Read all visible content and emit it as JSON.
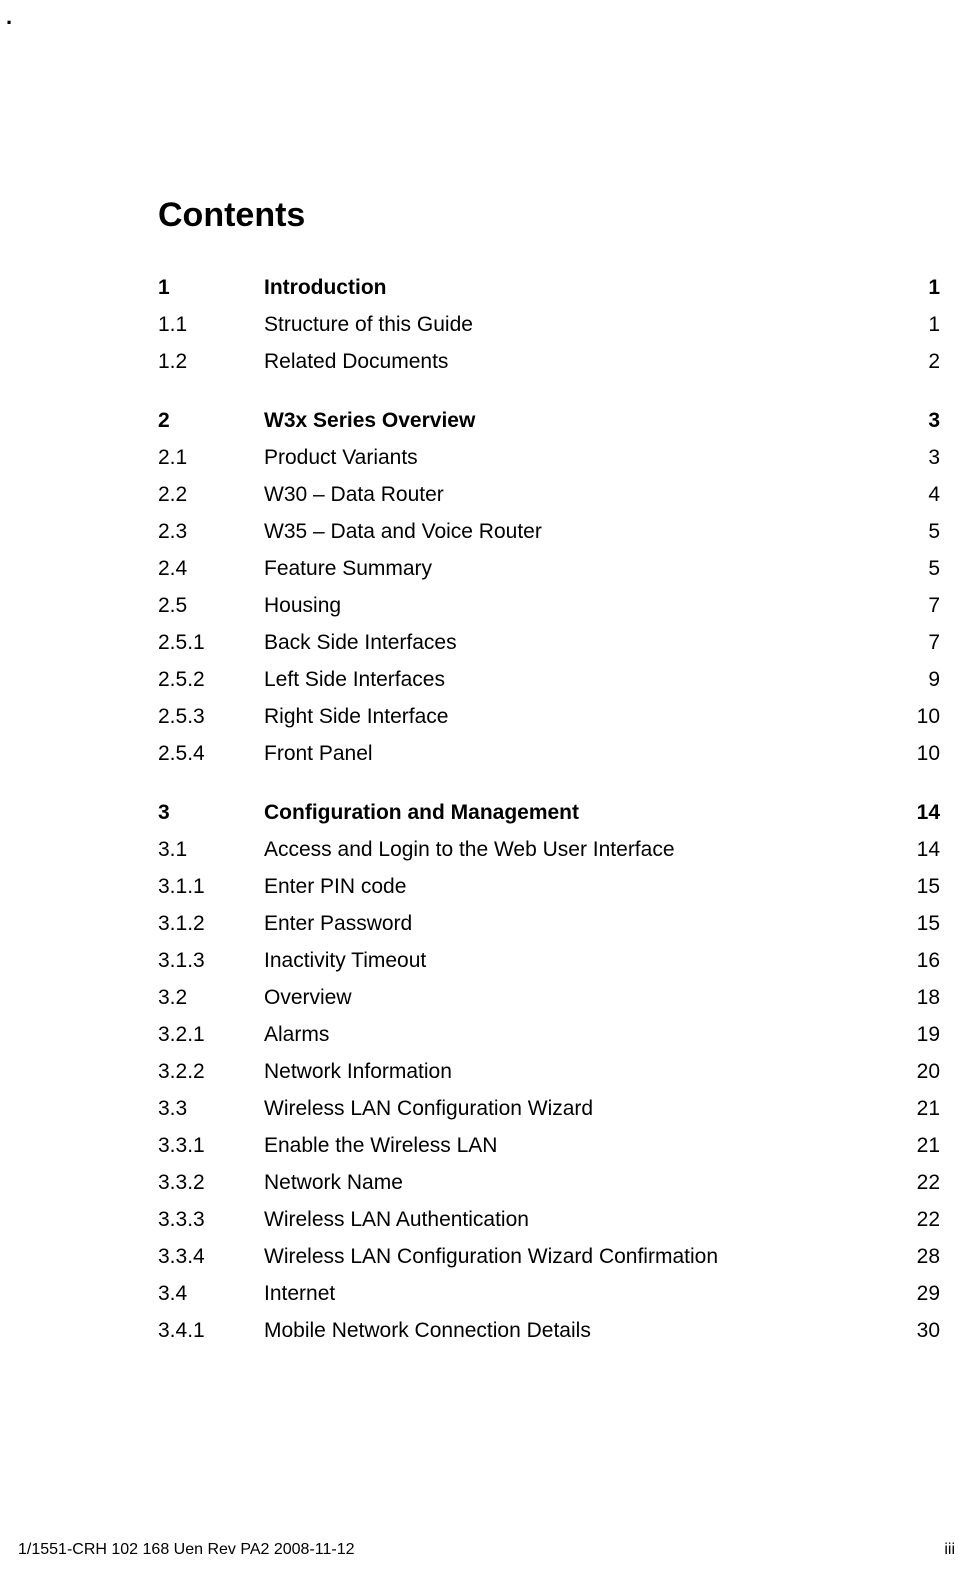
{
  "corner_mark": ".",
  "heading": "Contents",
  "toc": [
    {
      "num": "1",
      "title": "Introduction",
      "page": "1",
      "bold": true,
      "gap_before": false
    },
    {
      "num": "1.1",
      "title": "Structure of this Guide",
      "page": "1",
      "bold": false,
      "gap_before": false
    },
    {
      "num": "1.2",
      "title": "Related Documents",
      "page": "2",
      "bold": false,
      "gap_before": false
    },
    {
      "num": "2",
      "title": "W3x Series Overview",
      "page": "3",
      "bold": true,
      "gap_before": true
    },
    {
      "num": "2.1",
      "title": "Product Variants",
      "page": "3",
      "bold": false,
      "gap_before": false
    },
    {
      "num": "2.2",
      "title": "W30 – Data Router",
      "page": "4",
      "bold": false,
      "gap_before": false
    },
    {
      "num": "2.3",
      "title": "W35 – Data and Voice Router",
      "page": "5",
      "bold": false,
      "gap_before": false
    },
    {
      "num": "2.4",
      "title": "Feature Summary",
      "page": "5",
      "bold": false,
      "gap_before": false
    },
    {
      "num": "2.5",
      "title": "Housing",
      "page": "7",
      "bold": false,
      "gap_before": false
    },
    {
      "num": "2.5.1",
      "title": "Back Side Interfaces",
      "page": "7",
      "bold": false,
      "gap_before": false
    },
    {
      "num": "2.5.2",
      "title": "Left Side Interfaces",
      "page": "9",
      "bold": false,
      "gap_before": false
    },
    {
      "num": "2.5.3",
      "title": "Right Side Interface",
      "page": "10",
      "bold": false,
      "gap_before": false
    },
    {
      "num": "2.5.4",
      "title": "Front Panel",
      "page": "10",
      "bold": false,
      "gap_before": false
    },
    {
      "num": "3",
      "title": "Configuration and Management",
      "page": "14",
      "bold": true,
      "gap_before": true
    },
    {
      "num": "3.1",
      "title": "Access and Login to the Web User Interface",
      "page": "14",
      "bold": false,
      "gap_before": false
    },
    {
      "num": "3.1.1",
      "title": "Enter PIN code",
      "page": "15",
      "bold": false,
      "gap_before": false
    },
    {
      "num": "3.1.2",
      "title": "Enter Password",
      "page": "15",
      "bold": false,
      "gap_before": false
    },
    {
      "num": "3.1.3",
      "title": "Inactivity Timeout",
      "page": "16",
      "bold": false,
      "gap_before": false
    },
    {
      "num": "3.2",
      "title": "Overview",
      "page": "18",
      "bold": false,
      "gap_before": false
    },
    {
      "num": "3.2.1",
      "title": "Alarms",
      "page": "19",
      "bold": false,
      "gap_before": false
    },
    {
      "num": "3.2.2",
      "title": "Network Information",
      "page": "20",
      "bold": false,
      "gap_before": false
    },
    {
      "num": "3.3",
      "title": "Wireless LAN Configuration Wizard",
      "page": "21",
      "bold": false,
      "gap_before": false
    },
    {
      "num": "3.3.1",
      "title": "Enable the Wireless LAN",
      "page": "21",
      "bold": false,
      "gap_before": false
    },
    {
      "num": "3.3.2",
      "title": "Network Name",
      "page": "22",
      "bold": false,
      "gap_before": false
    },
    {
      "num": "3.3.3",
      "title": "Wireless LAN Authentication",
      "page": "22",
      "bold": false,
      "gap_before": false
    },
    {
      "num": "3.3.4",
      "title": "Wireless LAN Configuration Wizard Confirmation",
      "page": "28",
      "bold": false,
      "gap_before": false
    },
    {
      "num": "3.4",
      "title": "Internet",
      "page": "29",
      "bold": false,
      "gap_before": false
    },
    {
      "num": "3.4.1",
      "title": "Mobile Network Connection Details",
      "page": "30",
      "bold": false,
      "gap_before": false
    }
  ],
  "footer": {
    "left": "1/1551-CRH 102 168 Uen Rev PA2  2008-11-12",
    "right": "iii"
  }
}
